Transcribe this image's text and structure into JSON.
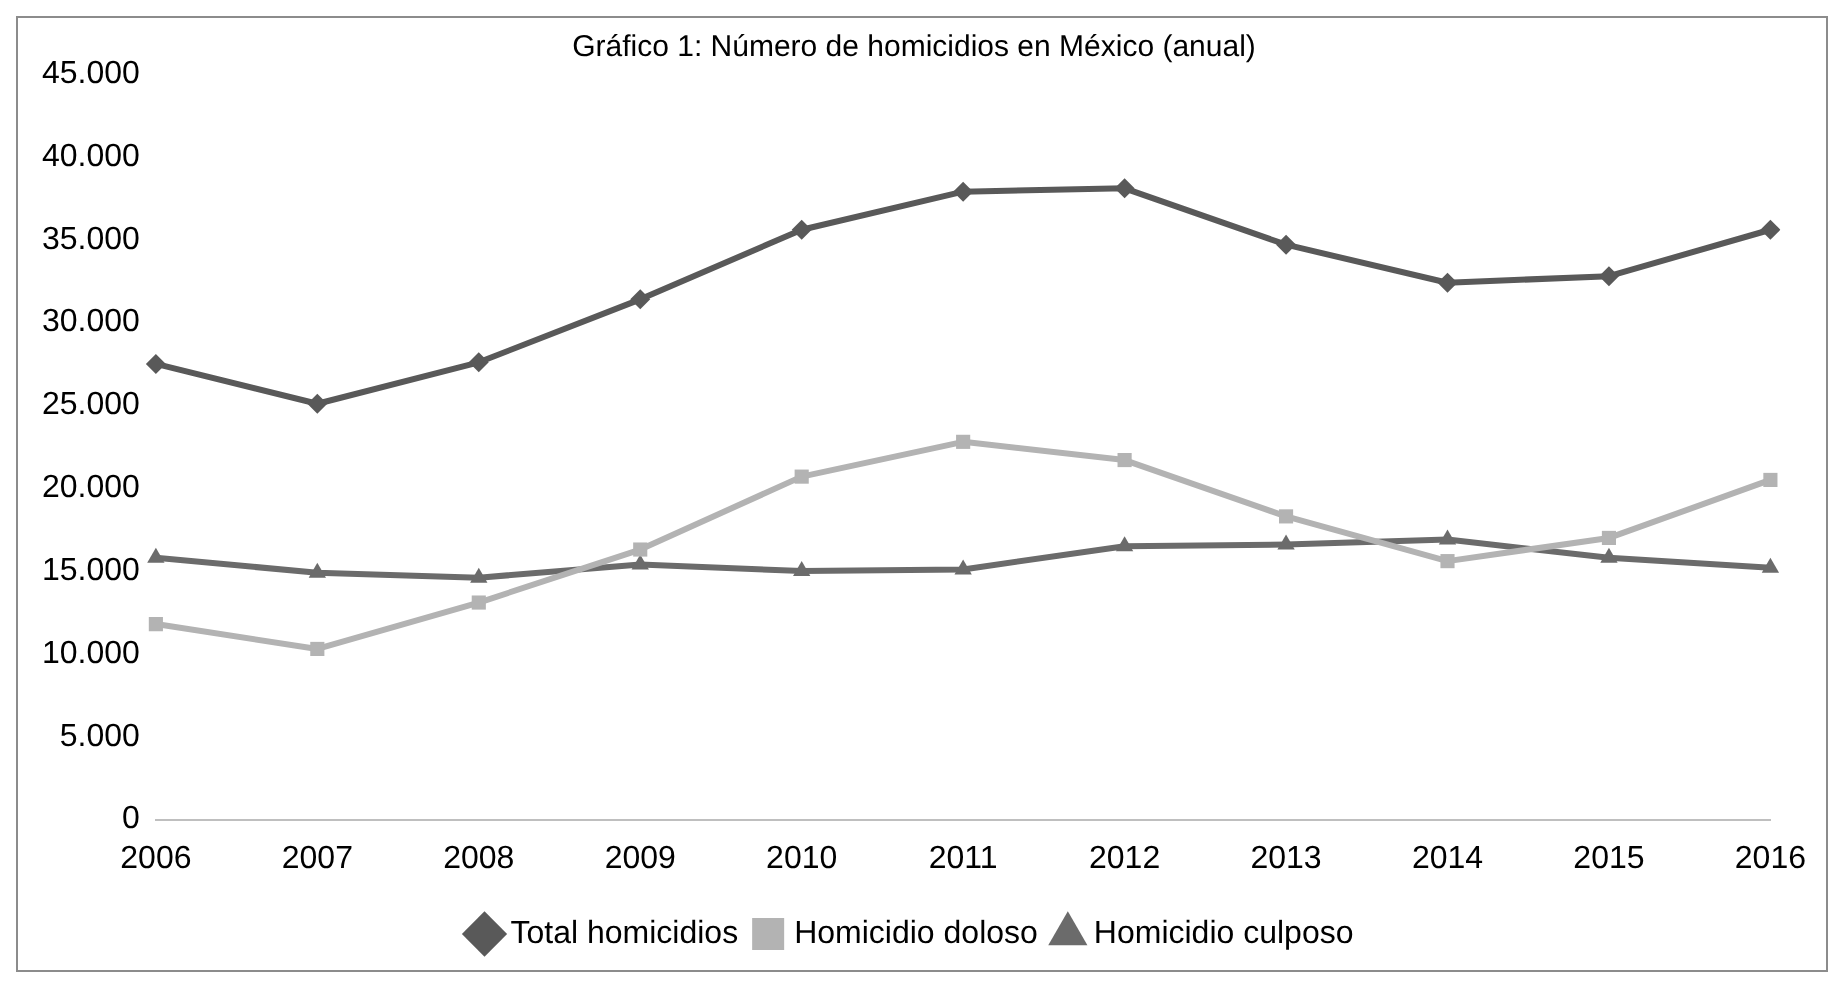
{
  "chart_data": {
    "type": "line",
    "title": "Gráfico 1: Número de homicidios en México (anual)",
    "categories": [
      "2006",
      "2007",
      "2008",
      "2009",
      "2010",
      "2011",
      "2012",
      "2013",
      "2014",
      "2015",
      "2016"
    ],
    "series": [
      {
        "name": "Total homicidios",
        "color": "#595959",
        "marker": "diamond",
        "values": [
          27500,
          25100,
          27600,
          31400,
          35600,
          37900,
          38100,
          34700,
          32400,
          32800,
          35600
        ]
      },
      {
        "name": "Homicidio doloso",
        "color": "#b3b3b3",
        "marker": "square",
        "values": [
          11800,
          10300,
          13100,
          16300,
          20700,
          22800,
          21700,
          18300,
          15600,
          17000,
          20500
        ]
      },
      {
        "name": "Homicidio culposo",
        "color": "#6b6b6b",
        "marker": "triangle",
        "values": [
          15800,
          14900,
          14600,
          15400,
          15000,
          15100,
          16500,
          16600,
          16900,
          15800,
          15200
        ]
      }
    ],
    "ylim": [
      0,
      45000
    ],
    "yticks": [
      {
        "value": 0,
        "label": "0"
      },
      {
        "value": 5000,
        "label": "5.000"
      },
      {
        "value": 10000,
        "label": "10.000"
      },
      {
        "value": 15000,
        "label": "15.000"
      },
      {
        "value": 20000,
        "label": "20.000"
      },
      {
        "value": 25000,
        "label": "25.000"
      },
      {
        "value": 30000,
        "label": "30.000"
      },
      {
        "value": 35000,
        "label": "35.000"
      },
      {
        "value": 40000,
        "label": "40.000"
      },
      {
        "value": 45000,
        "label": "45.000"
      }
    ],
    "grid": false,
    "legend": "bottom",
    "line_style": "solid"
  }
}
